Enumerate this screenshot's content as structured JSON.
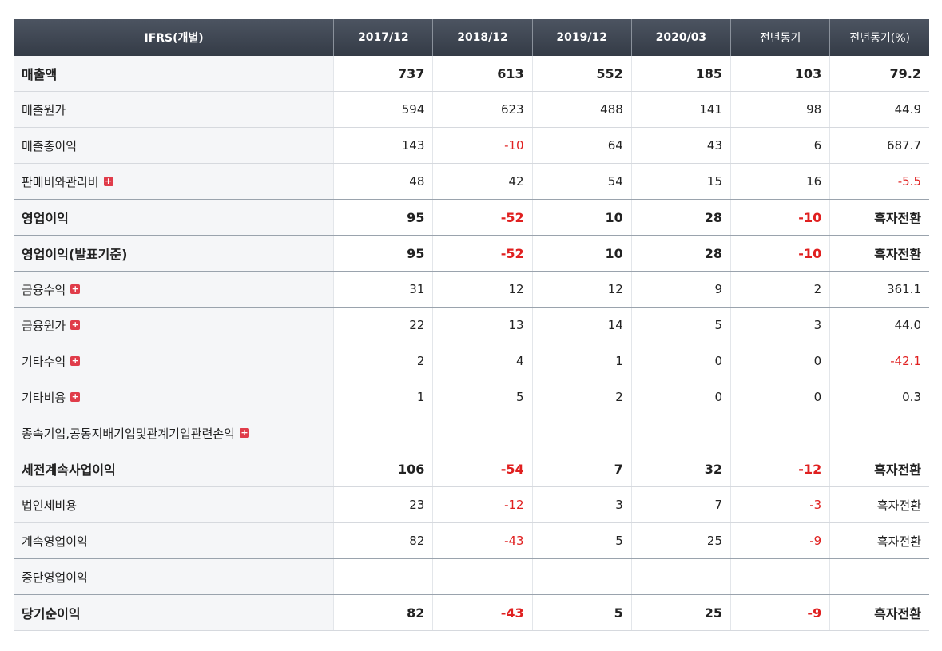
{
  "header": [
    "IFRS(개별)",
    "2017/12",
    "2018/12",
    "2019/12",
    "2020/03",
    "전년동기",
    "전년동기(%)"
  ],
  "rows": [
    {
      "label": "매출액",
      "bold": true,
      "expand": false,
      "values": [
        "737",
        "613",
        "552",
        "185",
        "103",
        "79.2"
      ]
    },
    {
      "label": "매출원가",
      "bold": false,
      "expand": false,
      "values": [
        "594",
        "623",
        "488",
        "141",
        "98",
        "44.9"
      ]
    },
    {
      "label": "매출총이익",
      "bold": false,
      "expand": false,
      "values": [
        "143",
        "-10",
        "64",
        "43",
        "6",
        "687.7"
      ]
    },
    {
      "label": "판매비와관리비",
      "bold": false,
      "expand": true,
      "values": [
        "48",
        "42",
        "54",
        "15",
        "16",
        "-5.5"
      ]
    },
    {
      "label": "영업이익",
      "bold": true,
      "expand": false,
      "values": [
        "95",
        "-52",
        "10",
        "28",
        "-10",
        "흑자전환"
      ]
    },
    {
      "label": "영업이익(발표기준)",
      "bold": true,
      "expand": false,
      "values": [
        "95",
        "-52",
        "10",
        "28",
        "-10",
        "흑자전환"
      ]
    },
    {
      "label": "금융수익",
      "bold": false,
      "expand": true,
      "values": [
        "31",
        "12",
        "12",
        "9",
        "2",
        "361.1"
      ]
    },
    {
      "label": "금융원가",
      "bold": false,
      "expand": true,
      "values": [
        "22",
        "13",
        "14",
        "5",
        "3",
        "44.0"
      ]
    },
    {
      "label": "기타수익",
      "bold": false,
      "expand": true,
      "values": [
        "2",
        "4",
        "1",
        "0",
        "0",
        "-42.1"
      ]
    },
    {
      "label": "기타비용",
      "bold": false,
      "expand": true,
      "values": [
        "1",
        "5",
        "2",
        "0",
        "0",
        "0.3"
      ]
    },
    {
      "label": "종속기업,공동지배기업및관계기업관련손익",
      "bold": false,
      "expand": true,
      "values": [
        "",
        "",
        "",
        "",
        "",
        ""
      ]
    },
    {
      "label": "세전계속사업이익",
      "bold": true,
      "expand": false,
      "values": [
        "106",
        "-54",
        "7",
        "32",
        "-12",
        "흑자전환"
      ]
    },
    {
      "label": "법인세비용",
      "bold": false,
      "expand": false,
      "values": [
        "23",
        "-12",
        "3",
        "7",
        "-3",
        "흑자전환"
      ]
    },
    {
      "label": "계속영업이익",
      "bold": false,
      "expand": false,
      "values": [
        "82",
        "-43",
        "5",
        "25",
        "-9",
        "흑자전환"
      ]
    },
    {
      "label": "중단영업이익",
      "bold": false,
      "expand": false,
      "values": [
        "",
        "",
        "",
        "",
        "",
        ""
      ]
    },
    {
      "label": "당기순이익",
      "bold": true,
      "expand": false,
      "values": [
        "82",
        "-43",
        "5",
        "25",
        "-9",
        "흑자전환"
      ]
    }
  ],
  "expand_symbol": "+",
  "colors": {
    "header_bg": "#3c434f",
    "negative": "#e02020",
    "expand_icon": "#e03c4a",
    "label_bg": "#f5f6f8"
  }
}
